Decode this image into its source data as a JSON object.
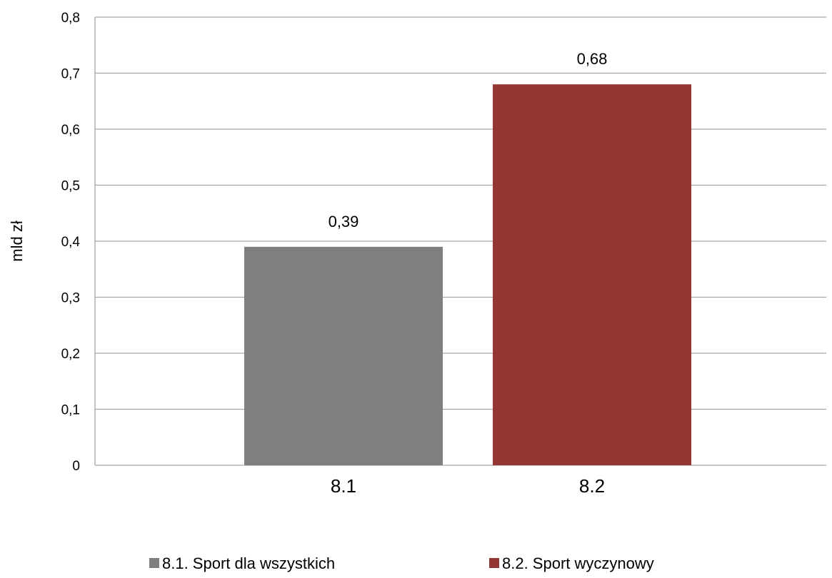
{
  "chart_data": {
    "type": "bar",
    "categories": [
      "8.1",
      "8.2"
    ],
    "values": [
      0.39,
      0.68
    ],
    "data_labels": [
      "0,39",
      "0,68"
    ],
    "colors": [
      "#7f7f7f",
      "#943634"
    ],
    "xlabel": "",
    "ylabel": "mld zł",
    "ylim": [
      0,
      0.8
    ],
    "y_ticks": [
      0,
      0.1,
      0.2,
      0.3,
      0.4,
      0.5,
      0.6,
      0.7,
      0.8
    ],
    "y_tick_labels": [
      "0",
      "0,1",
      "0,2",
      "0,3",
      "0,4",
      "0,5",
      "0,6",
      "0,7",
      "0,8"
    ],
    "grid": true,
    "gridline_color": "#a6a6a6",
    "legend": {
      "position": "bottom",
      "entries": [
        {
          "label": "8.1. Sport dla wszystkich",
          "color": "#7f7f7f"
        },
        {
          "label": "8.2. Sport wyczynowy",
          "color": "#943634"
        }
      ]
    }
  }
}
